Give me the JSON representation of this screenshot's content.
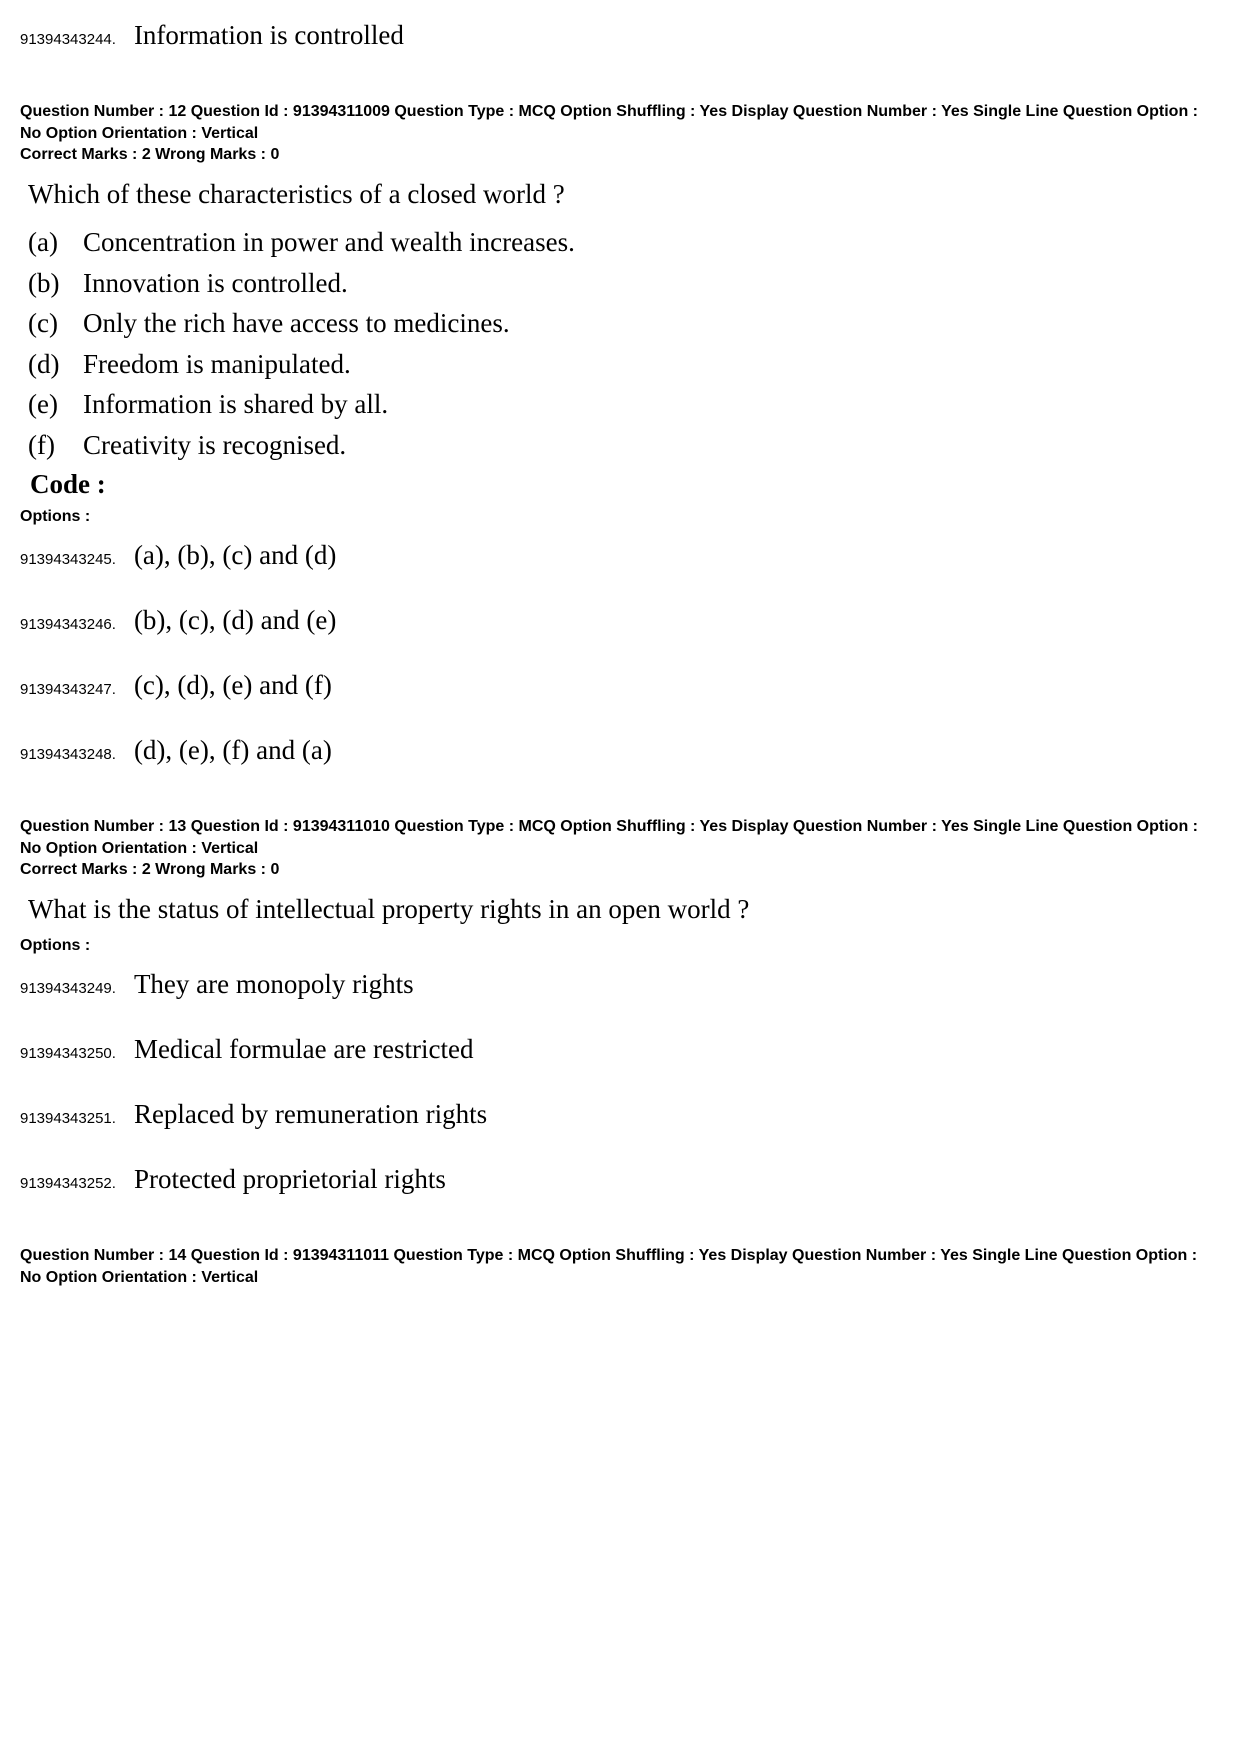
{
  "top_partial_option": {
    "id": "91394343244.",
    "text": "Information is controlled"
  },
  "questions": [
    {
      "meta": {
        "line1": "Question Number : 12  Question Id : 91394311009  Question Type : MCQ  Option Shuffling : Yes  Display Question Number : Yes  Single Line Question Option : No  Option Orientation : Vertical",
        "line2": "Correct Marks : 2  Wrong Marks : 0"
      },
      "stem": "Which of these characteristics of a closed world ?",
      "characteristics": [
        {
          "label": "(a)",
          "text": "Concentration in power and wealth increases."
        },
        {
          "label": "(b)",
          "text": "Innovation is controlled."
        },
        {
          "label": "(c)",
          "text": "Only the rich have access to medicines."
        },
        {
          "label": "(d)",
          "text": "Freedom is manipulated."
        },
        {
          "label": "(e)",
          "text": "Information is shared by all."
        },
        {
          "label": "(f)",
          "text": "Creativity is recognised."
        }
      ],
      "code_label": "Code :",
      "options_label": "Options :",
      "options": [
        {
          "id": "91394343245.",
          "text": "(a), (b), (c) and (d)"
        },
        {
          "id": "91394343246.",
          "text": "(b), (c), (d) and (e)"
        },
        {
          "id": "91394343247.",
          "text": "(c), (d), (e) and (f)"
        },
        {
          "id": "91394343248.",
          "text": "(d), (e), (f) and (a)"
        }
      ]
    },
    {
      "meta": {
        "line1": "Question Number : 13  Question Id : 91394311010  Question Type : MCQ  Option Shuffling : Yes  Display Question Number : Yes  Single Line Question Option : No  Option Orientation : Vertical",
        "line2": "Correct Marks : 2  Wrong Marks : 0"
      },
      "stem": "What is the status of intellectual property rights in an open world ?",
      "options_label": "Options :",
      "options": [
        {
          "id": "91394343249.",
          "text": "They are monopoly rights"
        },
        {
          "id": "91394343250.",
          "text": "Medical formulae are restricted"
        },
        {
          "id": "91394343251.",
          "text": "Replaced by remuneration rights"
        },
        {
          "id": "91394343252.",
          "text": "Protected proprietorial rights"
        }
      ]
    },
    {
      "meta": {
        "line1": "Question Number : 14  Question Id : 91394311011  Question Type : MCQ  Option Shuffling : Yes  Display Question Number : Yes  Single Line Question Option : No  Option Orientation : Vertical"
      }
    }
  ]
}
